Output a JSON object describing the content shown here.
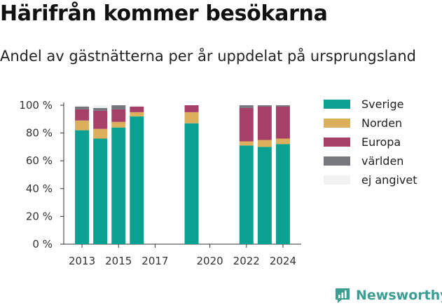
{
  "header": {
    "title": "Härifrån kommer besökarna",
    "subtitle": "Andel av gästnätterna per år uppdelat på ursprungsland"
  },
  "brand": {
    "name": "Newsworthy",
    "icon": "newsworthy-logo-icon",
    "color": "#3a9e92"
  },
  "chart_data": {
    "type": "bar",
    "stacked": true,
    "x": [
      2013,
      2014,
      2015,
      2016,
      2017,
      2018,
      2019,
      2020,
      2021,
      2022,
      2023,
      2024
    ],
    "x_tick_labels": [
      "2013",
      "2015",
      "2017",
      "2020",
      "2022",
      "2024"
    ],
    "y_tick_labels": [
      "0 %",
      "20 %",
      "40 %",
      "60 %",
      "80 %",
      "100 %"
    ],
    "ylim": [
      0,
      100
    ],
    "grid": false,
    "legend_position": "right",
    "series": [
      {
        "name": "Sverige",
        "color": "#0aa192",
        "values": [
          82,
          76,
          84,
          92,
          null,
          null,
          87,
          null,
          null,
          71,
          70,
          72
        ]
      },
      {
        "name": "Norden",
        "color": "#dcaf5c",
        "values": [
          7,
          7,
          4,
          3,
          null,
          null,
          8,
          null,
          null,
          3,
          5,
          4
        ]
      },
      {
        "name": "Europa",
        "color": "#a74068",
        "values": [
          8,
          13,
          9,
          4,
          null,
          null,
          5,
          null,
          null,
          24,
          24,
          23
        ]
      },
      {
        "name": "världen",
        "color": "#77777e",
        "values": [
          2,
          2,
          3,
          0,
          null,
          null,
          0,
          null,
          null,
          2,
          1,
          1
        ]
      },
      {
        "name": "ej angivet",
        "color": "#f2f2f2",
        "values": [
          1,
          2,
          0,
          1,
          null,
          null,
          0,
          null,
          null,
          0,
          0,
          0
        ]
      }
    ]
  }
}
